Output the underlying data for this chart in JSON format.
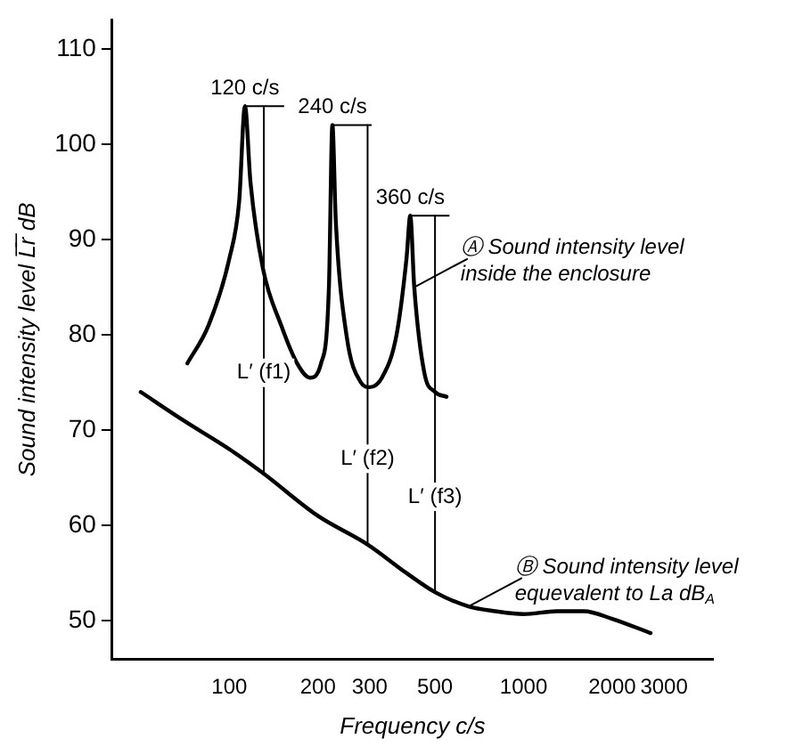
{
  "chart_data": {
    "type": "line",
    "xlabel": "Frequency c/s",
    "ylabel": "Sound intensity level L̅r̅ dB",
    "log": "x",
    "xlim": [
      40,
      4400
    ],
    "ylim": [
      46,
      113
    ],
    "xticks": [
      100,
      200,
      300,
      500,
      1000,
      2000,
      3000
    ],
    "yticks": [
      50,
      60,
      70,
      80,
      90,
      100,
      110
    ],
    "grid": false,
    "legend": false,
    "marker": "none",
    "line_style": "solid",
    "series": [
      {
        "color": "#000000",
        "x": [
          72,
          85,
          100,
          108,
          113,
          118,
          130,
          150,
          170,
          188,
          205,
          218,
          224,
          230,
          250,
          280,
          300,
          330,
          370,
          400,
          412,
          425,
          460,
          500,
          547
        ],
        "values": [
          77,
          81,
          88,
          94,
          104,
          96,
          87,
          81,
          77,
          75.5,
          77,
          85,
          102,
          92,
          80,
          75,
          74.5,
          75.5,
          80,
          88,
          92.5,
          85,
          76,
          74,
          73.5
        ]
      },
      {
        "color": "#000000",
        "x": [
          50,
          70,
          100,
          130,
          200,
          295,
          400,
          500,
          650,
          800,
          1000,
          1300,
          1600,
          2000,
          2700
        ],
        "values": [
          74,
          71,
          68,
          65.5,
          61,
          58,
          55,
          53,
          51.5,
          51,
          50.7,
          51,
          51,
          50.2,
          48.7
        ]
      },
      {
        "color": "#000000",
        "x": [
          131,
          131
        ],
        "values": [
          104,
          65.5
        ]
      },
      {
        "color": "#000000",
        "x": [
          295,
          295
        ],
        "values": [
          102,
          58
        ]
      },
      {
        "color": "#000000",
        "x": [
          500,
          500
        ],
        "values": [
          92.5,
          53
        ]
      }
    ],
    "annotations": [
      {
        "text": "120 c/s",
        "x": 113,
        "y": 104
      },
      {
        "text": "240 c/s",
        "x": 224,
        "y": 102
      },
      {
        "text": "360 c/s",
        "x": 412,
        "y": 92.5
      },
      {
        "text": "L′ (f1)",
        "x": 131,
        "y": 76
      },
      {
        "text": "L′ (f2)",
        "x": 295,
        "y": 67
      },
      {
        "text": "L′ (f3)",
        "x": 500,
        "y": 63
      },
      {
        "text": "Ⓐ Sound intensity level\ninside the enclosure",
        "x": 425,
        "y": 85
      },
      {
        "text": "Ⓑ Sound intensity level\nequevalent to La dB$_{A}$",
        "x": 650,
        "y": 51.5
      }
    ]
  }
}
